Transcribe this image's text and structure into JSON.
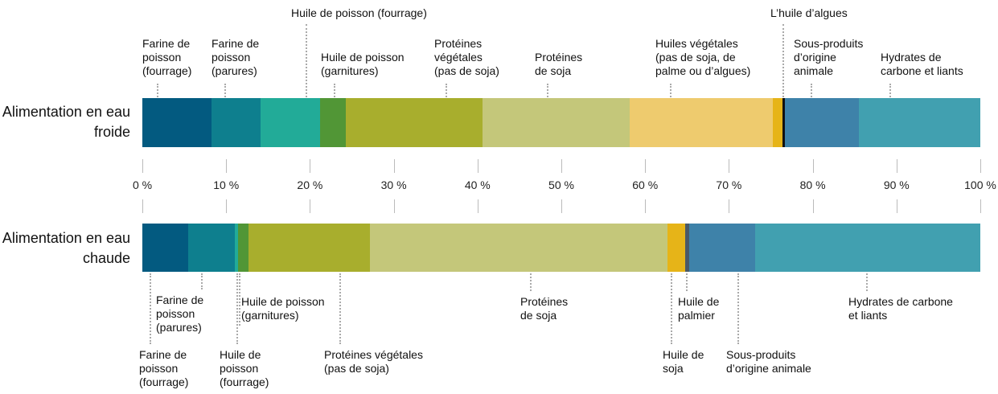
{
  "chart_data": {
    "type": "stacked-bar",
    "categories": [
      "Alimentation en eau froide",
      "Alimentation en eau chaude"
    ],
    "xlim": [
      0,
      100
    ],
    "xticks": [
      {
        "value": 0,
        "label": "0 %"
      },
      {
        "value": 10,
        "label": "10 %"
      },
      {
        "value": 20,
        "label": "20 %"
      },
      {
        "value": 30,
        "label": "30 %"
      },
      {
        "value": 40,
        "label": "40 %"
      },
      {
        "value": 50,
        "label": "50 %"
      },
      {
        "value": 60,
        "label": "60 %"
      },
      {
        "value": 70,
        "label": "70 %"
      },
      {
        "value": 80,
        "label": "80 %"
      },
      {
        "value": 90,
        "label": "90 %"
      },
      {
        "value": 100,
        "label": "100 %"
      }
    ],
    "rows": [
      {
        "segments": [
          {
            "label": "Farine de\npoisson\n(fourrage)",
            "color": "#035a80",
            "value": 8.3
          },
          {
            "label": "Farine de\npoisson\n(parures)",
            "color": "#0e7f8e",
            "value": 5.8
          },
          {
            "label": "Huile de poisson (fourrage)",
            "color": "#22ab98",
            "value": 7.1
          },
          {
            "label": "Huile de poisson\n(garnitures)",
            "color": "#519636",
            "value": 3.1
          },
          {
            "label": "Protéines\nvégétales\n(pas de soja)",
            "color": "#a8ae2d",
            "value": 16.3
          },
          {
            "label": "Protéines\nde soja",
            "color": "#c4c77a",
            "value": 17.6
          },
          {
            "label": "Huiles végétales\n(pas de soja, de\npalme ou d’algues)",
            "color": "#eecb6e",
            "value": 17.0
          },
          {
            "label": null,
            "color": "#e6b418",
            "value": 1.2
          },
          {
            "label": "L’huile d’algues",
            "color": "#111111",
            "value": 0.3
          },
          {
            "label": "Sous-produits\nd’origine\nanimale",
            "color": "#3e82a9",
            "value": 8.8
          },
          {
            "label": "Hydrates de\ncarbone et liants",
            "color": "#41a0b0",
            "value": 14.5
          }
        ]
      },
      {
        "segments": [
          {
            "label": "Farine de\npoisson\n(fourrage)",
            "color": "#035a80",
            "value": 5.5
          },
          {
            "label": "Farine de\npoisson\n(parures)",
            "color": "#0e7f8e",
            "value": 5.5
          },
          {
            "label": "Huile de\npoisson\n(fourrage)",
            "color": "#22ab98",
            "value": 0.4
          },
          {
            "label": "Huile de poisson\n(garnitures)",
            "color": "#519636",
            "value": 1.3
          },
          {
            "label": "Protéines végétales\n(pas de soja)",
            "color": "#a8ae2d",
            "value": 14.5
          },
          {
            "label": "Protéines\nde soja",
            "color": "#c4c77a",
            "value": 35.5
          },
          {
            "label": "Huile de\nsoja",
            "color": "#e6b418",
            "value": 2.1
          },
          {
            "label": "Huile de\npalmier",
            "color": "#4a5966",
            "value": 0.5
          },
          {
            "label": "Sous-produits\nd’origine animale",
            "color": "#3e82a9",
            "value": 7.8
          },
          {
            "label": "Hydrates de carbone\net liants",
            "color": "#41a0b0",
            "value": 26.9
          }
        ]
      }
    ]
  }
}
